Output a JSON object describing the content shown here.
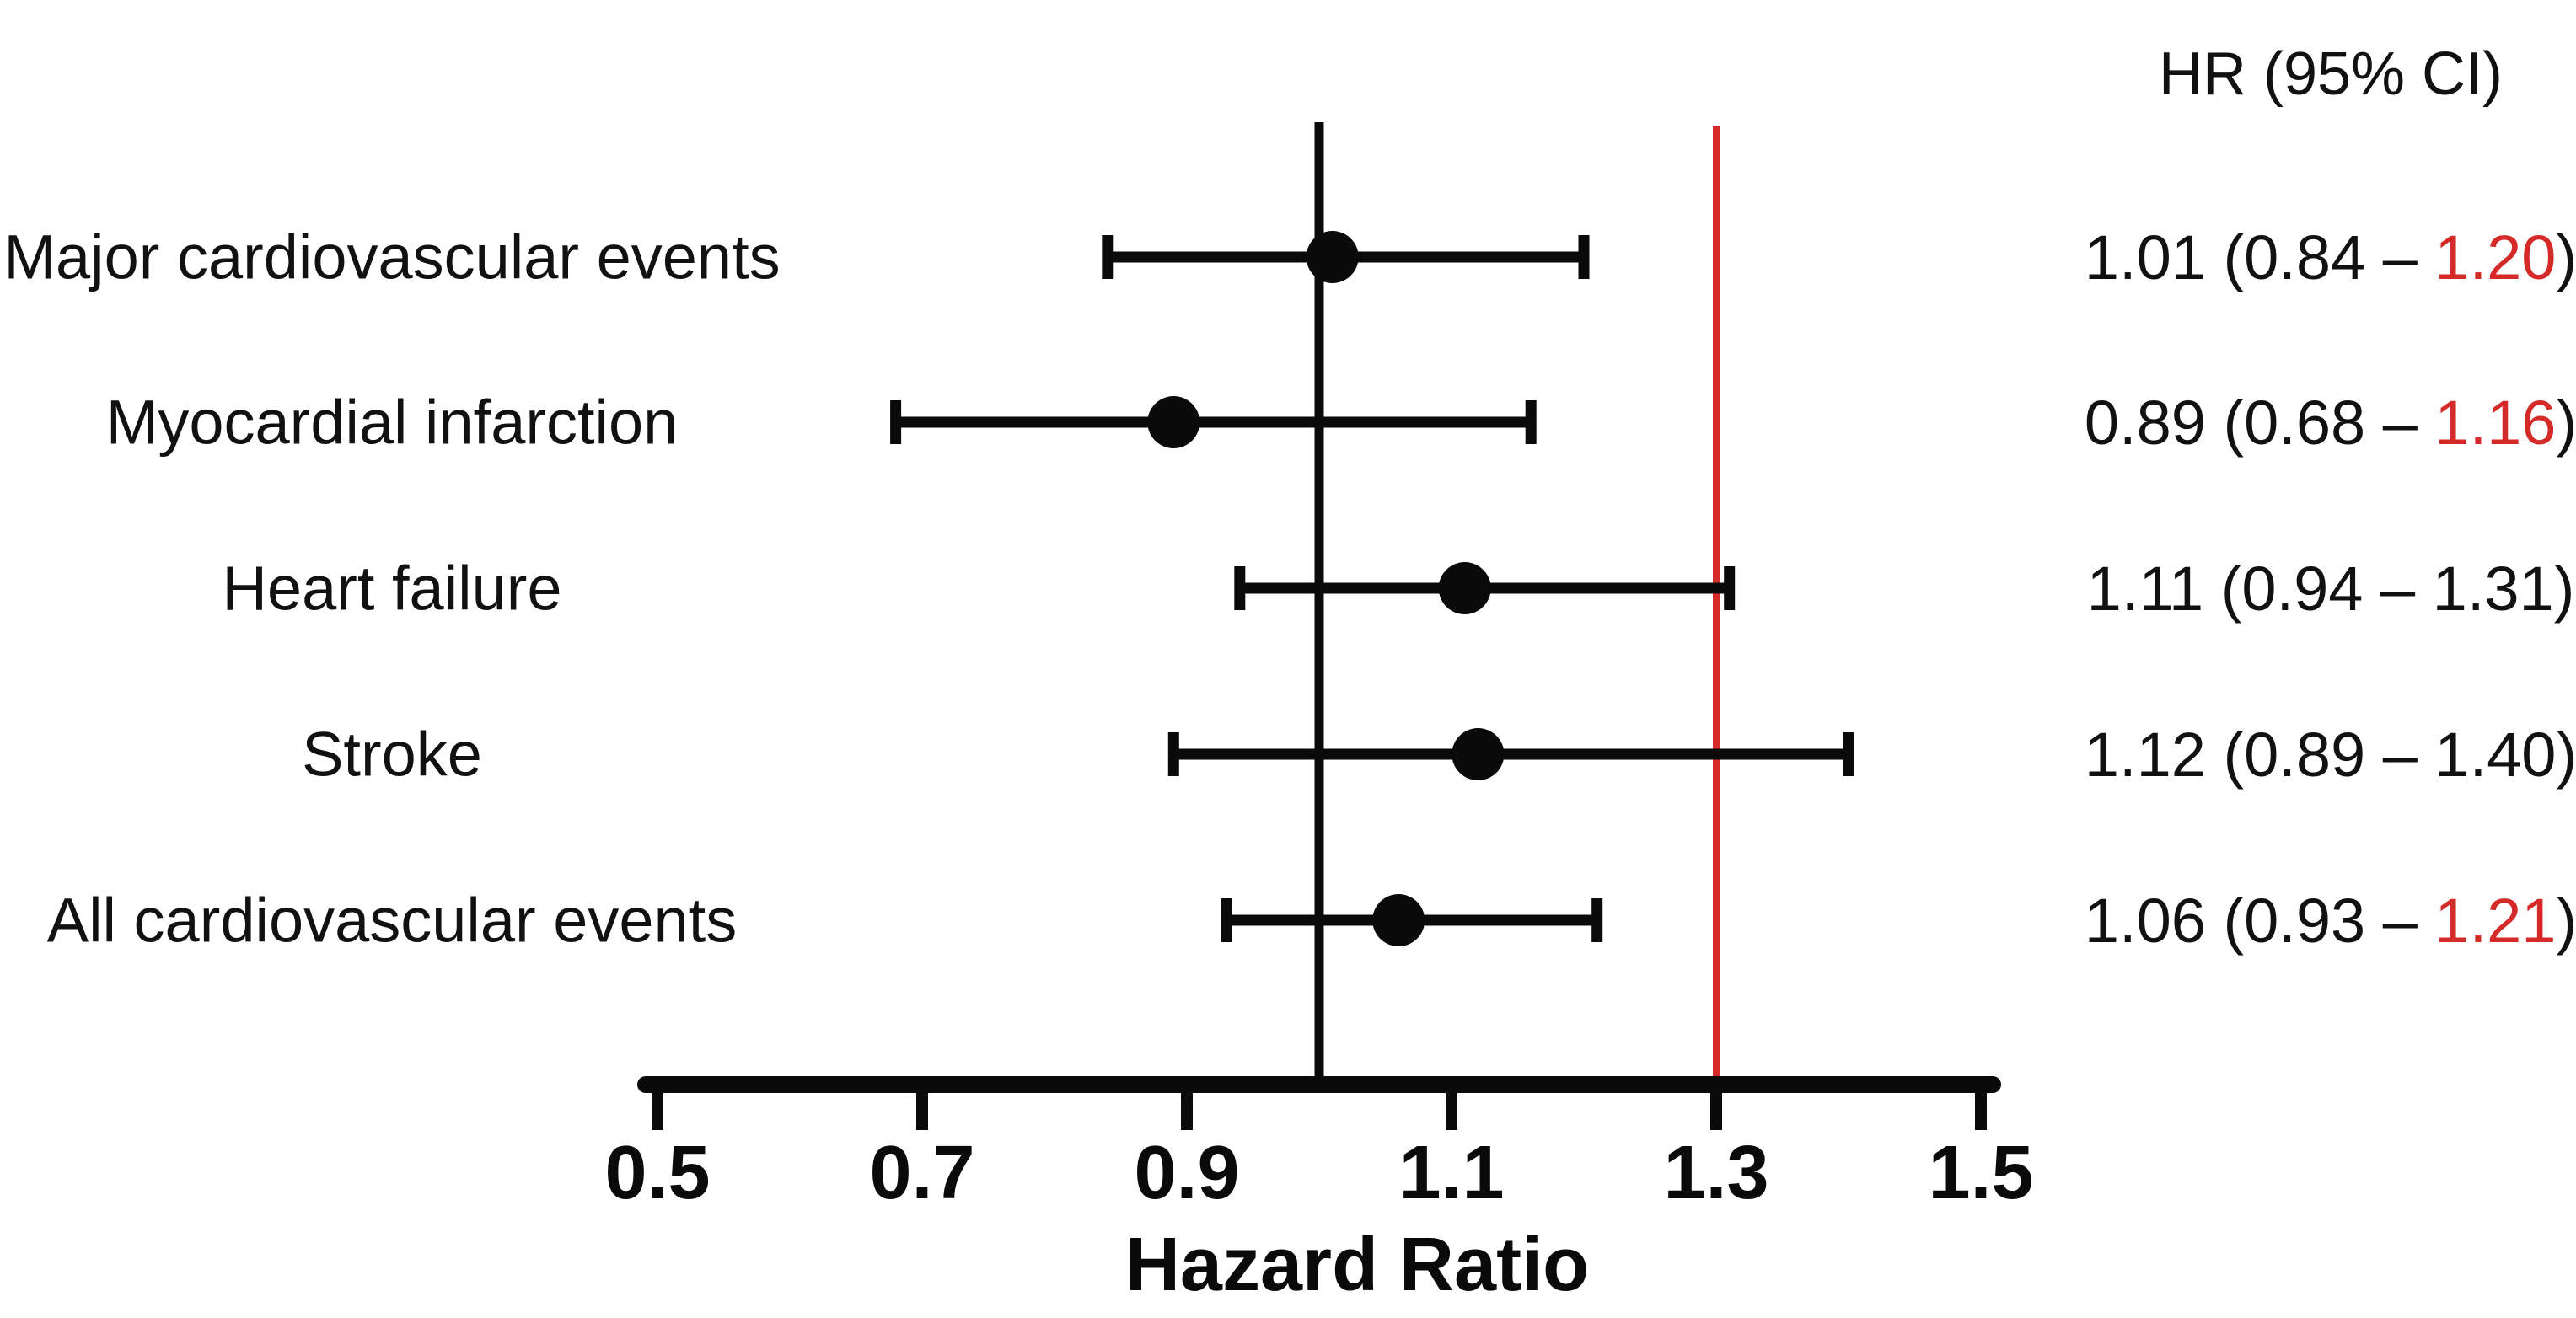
{
  "chart_data": {
    "type": "scatter",
    "subtype": "forest-plot",
    "column_header": "HR (95% CI)",
    "xlabel": "Hazard Ratio",
    "xlim": [
      0.5,
      1.5
    ],
    "x_ticks": [
      "0.5",
      "0.7",
      "0.9",
      "1.1",
      "1.3",
      "1.5"
    ],
    "grid": "off",
    "separator": " – ",
    "reference_lines": [
      {
        "name": "null-line",
        "value": 1.0,
        "color": "#0a0a0a"
      },
      {
        "name": "highlight-line",
        "value": 1.3,
        "color": "#d42a28"
      }
    ],
    "rows": [
      {
        "label": "Major cardiovascular events",
        "hr": 1.01,
        "ci_low": 0.84,
        "ci_high": 1.2,
        "hr_text": "1.01",
        "ci_low_text": "0.84",
        "ci_high_text": "1.20",
        "ci_high_red": true
      },
      {
        "label": "Myocardial infarction",
        "hr": 0.89,
        "ci_low": 0.68,
        "ci_high": 1.16,
        "hr_text": "0.89",
        "ci_low_text": "0.68",
        "ci_high_text": "1.16",
        "ci_high_red": true
      },
      {
        "label": "Heart failure",
        "hr": 1.11,
        "ci_low": 0.94,
        "ci_high": 1.31,
        "hr_text": "1.11",
        "ci_low_text": "0.94",
        "ci_high_text": "1.31",
        "ci_high_red": false
      },
      {
        "label": "Stroke",
        "hr": 1.12,
        "ci_low": 0.89,
        "ci_high": 1.4,
        "hr_text": "1.12",
        "ci_low_text": "0.89",
        "ci_high_text": "1.40",
        "ci_high_red": false
      },
      {
        "label": "All cardiovascular events",
        "hr": 1.06,
        "ci_low": 0.93,
        "ci_high": 1.21,
        "hr_text": "1.06",
        "ci_low_text": "0.93",
        "ci_high_text": "1.21",
        "ci_high_red": true
      }
    ],
    "colors": {
      "marker": "#0a0a0a",
      "axis": "#0a0a0a",
      "text": "#111111",
      "red": "#d42a28"
    }
  }
}
